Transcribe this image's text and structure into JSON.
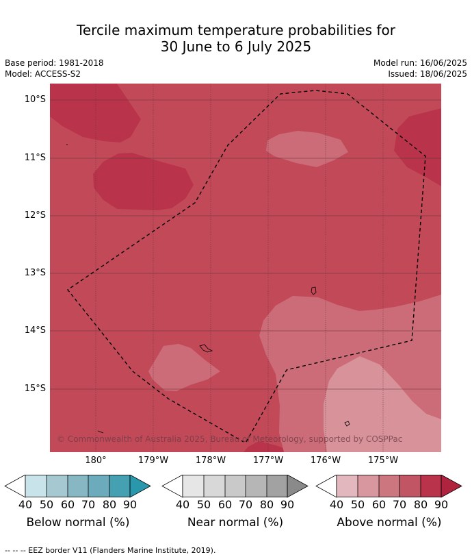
{
  "title_line1": "Tercile maximum temperature probabilities for",
  "title_line2": "30 June to 6 July 2025",
  "base_period": "Base period: 1981-2018",
  "model": "Model: ACCESS-S2",
  "model_run": "Model run: 16/06/2025",
  "issued": "Issued: 18/06/2025",
  "lat_labels": [
    "10°S",
    "11°S",
    "12°S",
    "13°S",
    "14°S",
    "15°S"
  ],
  "lon_labels": [
    "180°",
    "179°W",
    "178°W",
    "177°W",
    "176°W",
    "175°W"
  ],
  "copyright": "© Commonwealth of Australia 2025, Bureau of Meteorology, supported by COSPPac",
  "legends": [
    {
      "title": "Below normal (%)",
      "ticks": [
        "40",
        "50",
        "60",
        "70",
        "80",
        "90"
      ],
      "colors": [
        "#c9e3ea",
        "#a6c9d1",
        "#88b7c4",
        "#6cabbb",
        "#45a1b2",
        "#2a98ac"
      ]
    },
    {
      "title": "Near normal (%)",
      "ticks": [
        "40",
        "50",
        "60",
        "70",
        "80",
        "90"
      ],
      "colors": [
        "#e6e6e6",
        "#d8d8d8",
        "#c9c9c9",
        "#b6b6b6",
        "#a2a2a2",
        "#8a8a8a"
      ]
    },
    {
      "title": "Above normal (%)",
      "ticks": [
        "40",
        "50",
        "60",
        "70",
        "80",
        "90"
      ],
      "colors": [
        "#e2b8be",
        "#d8969f",
        "#cc7680",
        "#c25563",
        "#b9344a",
        "#b0233e"
      ]
    }
  ],
  "colors": {
    "base_fill": "#c24a58",
    "darker_fill": "#b9344a",
    "light_fill": "#cc6c78",
    "lightest_fill": "#d8929a"
  },
  "footnote": "--  --  -- EEZ border V11 (Flanders Marine Institute, 2019)."
}
